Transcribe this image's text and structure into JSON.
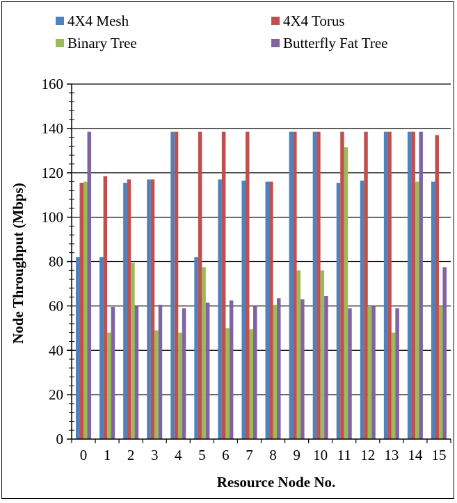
{
  "chart_data": {
    "type": "bar",
    "xlabel": "Resource Node No.",
    "ylabel": "Node Throughput (Mbps)",
    "ylim": [
      0,
      160
    ],
    "yticks": [
      0,
      20,
      40,
      60,
      80,
      100,
      120,
      140,
      160
    ],
    "grid": "horizontal",
    "legend_position": "top",
    "categories": [
      "0",
      "1",
      "2",
      "3",
      "4",
      "5",
      "6",
      "7",
      "8",
      "9",
      "10",
      "11",
      "12",
      "13",
      "14",
      "15"
    ],
    "series": [
      {
        "name": "4X4 Mesh",
        "color": "#4f81bd",
        "values": [
          82,
          82,
          115.5,
          117,
          138.5,
          82,
          117,
          116.5,
          116,
          138.5,
          138.5,
          115.5,
          116.5,
          138.5,
          138.5,
          116
        ]
      },
      {
        "name": "4X4 Torus",
        "color": "#c0504d",
        "values": [
          115.5,
          118.5,
          117,
          117,
          138.5,
          138.5,
          138.5,
          138.5,
          116,
          138.5,
          138.5,
          138.5,
          138.5,
          138.5,
          138.5,
          137
        ]
      },
      {
        "name": "Binary Tree",
        "color": "#9bbb59",
        "values": [
          116,
          48,
          79.5,
          49,
          48,
          77.5,
          50,
          49.5,
          60.5,
          76,
          76,
          131.5,
          59.5,
          48,
          116,
          60
        ]
      },
      {
        "name": "Butterfly Fat Tree",
        "color": "#8064a2",
        "values": [
          138.5,
          59.5,
          60,
          60.5,
          59,
          61.5,
          62.5,
          60,
          63.5,
          63,
          64.5,
          59,
          60,
          59,
          138.5,
          77.5
        ]
      }
    ]
  }
}
